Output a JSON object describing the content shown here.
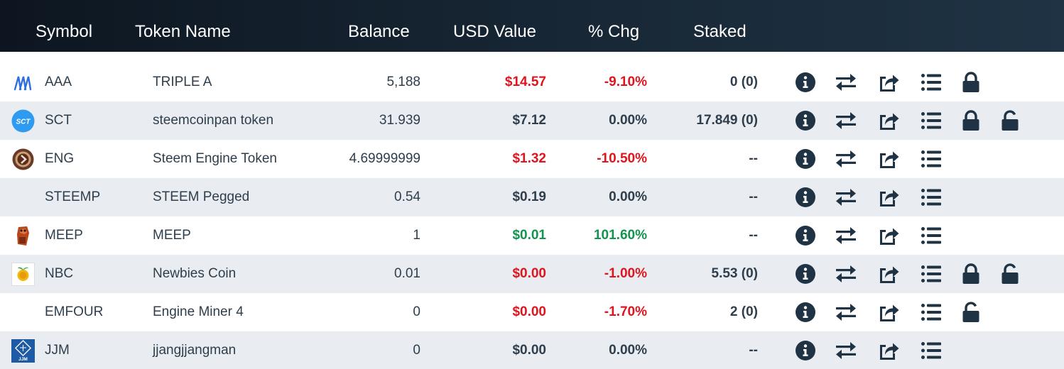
{
  "header": {
    "symbol": "Symbol",
    "token_name": "Token Name",
    "balance": "Balance",
    "usd_value": "USD Value",
    "pct_chg": "% Chg",
    "staked": "Staked"
  },
  "colors": {
    "header_dark": "#0d1620",
    "header_light": "#1f3344",
    "row_alt": "#e9edf1",
    "negative": "#e0141e",
    "positive": "#12944f",
    "icon": "#1f3344"
  },
  "rows": [
    {
      "symbol": "AAA",
      "name": "TRIPLE A",
      "balance": "5,188",
      "usd": "$14.57",
      "usd_trend": "neg",
      "chg": "-9.10%",
      "chg_trend": "neg",
      "staked": "0 (0)",
      "icon": "aaa-logo-icon",
      "stake_lock": true,
      "unstake_lock": false
    },
    {
      "symbol": "SCT",
      "name": "steemcoinpan token",
      "balance": "31.939",
      "usd": "$7.12",
      "usd_trend": "neu",
      "chg": "0.00%",
      "chg_trend": "neu",
      "staked": "17.849 (0)",
      "icon": "sct-logo-icon",
      "stake_lock": true,
      "unstake_lock": true
    },
    {
      "symbol": "ENG",
      "name": "Steem Engine Token",
      "balance": "4.69999999",
      "usd": "$1.32",
      "usd_trend": "neg",
      "chg": "-10.50%",
      "chg_trend": "neg",
      "staked": "--",
      "icon": "eng-logo-icon",
      "stake_lock": false,
      "unstake_lock": false
    },
    {
      "symbol": "STEEMP",
      "name": "STEEM Pegged",
      "balance": "0.54",
      "usd": "$0.19",
      "usd_trend": "neu",
      "chg": "0.00%",
      "chg_trend": "neu",
      "staked": "--",
      "icon": "",
      "stake_lock": false,
      "unstake_lock": false
    },
    {
      "symbol": "MEEP",
      "name": "MEEP",
      "balance": "1",
      "usd": "$0.01",
      "usd_trend": "pos",
      "chg": "101.60%",
      "chg_trend": "pos",
      "staked": "--",
      "icon": "meep-logo-icon",
      "stake_lock": false,
      "unstake_lock": false
    },
    {
      "symbol": "NBC",
      "name": "Newbies Coin",
      "balance": "0.01",
      "usd": "$0.00",
      "usd_trend": "neg",
      "chg": "-1.00%",
      "chg_trend": "neg",
      "staked": "5.53 (0)",
      "icon": "nbc-logo-icon",
      "stake_lock": true,
      "unstake_lock": true
    },
    {
      "symbol": "EMFOUR",
      "name": "Engine Miner 4",
      "balance": "0",
      "usd": "$0.00",
      "usd_trend": "neg",
      "chg": "-1.70%",
      "chg_trend": "neg",
      "staked": "2 (0)",
      "icon": "",
      "stake_lock": false,
      "unstake_lock": true
    },
    {
      "symbol": "JJM",
      "name": "jjangjjangman",
      "balance": "0",
      "usd": "$0.00",
      "usd_trend": "neu",
      "chg": "0.00%",
      "chg_trend": "neu",
      "staked": "--",
      "icon": "jjm-logo-icon",
      "stake_lock": false,
      "unstake_lock": false
    }
  ]
}
